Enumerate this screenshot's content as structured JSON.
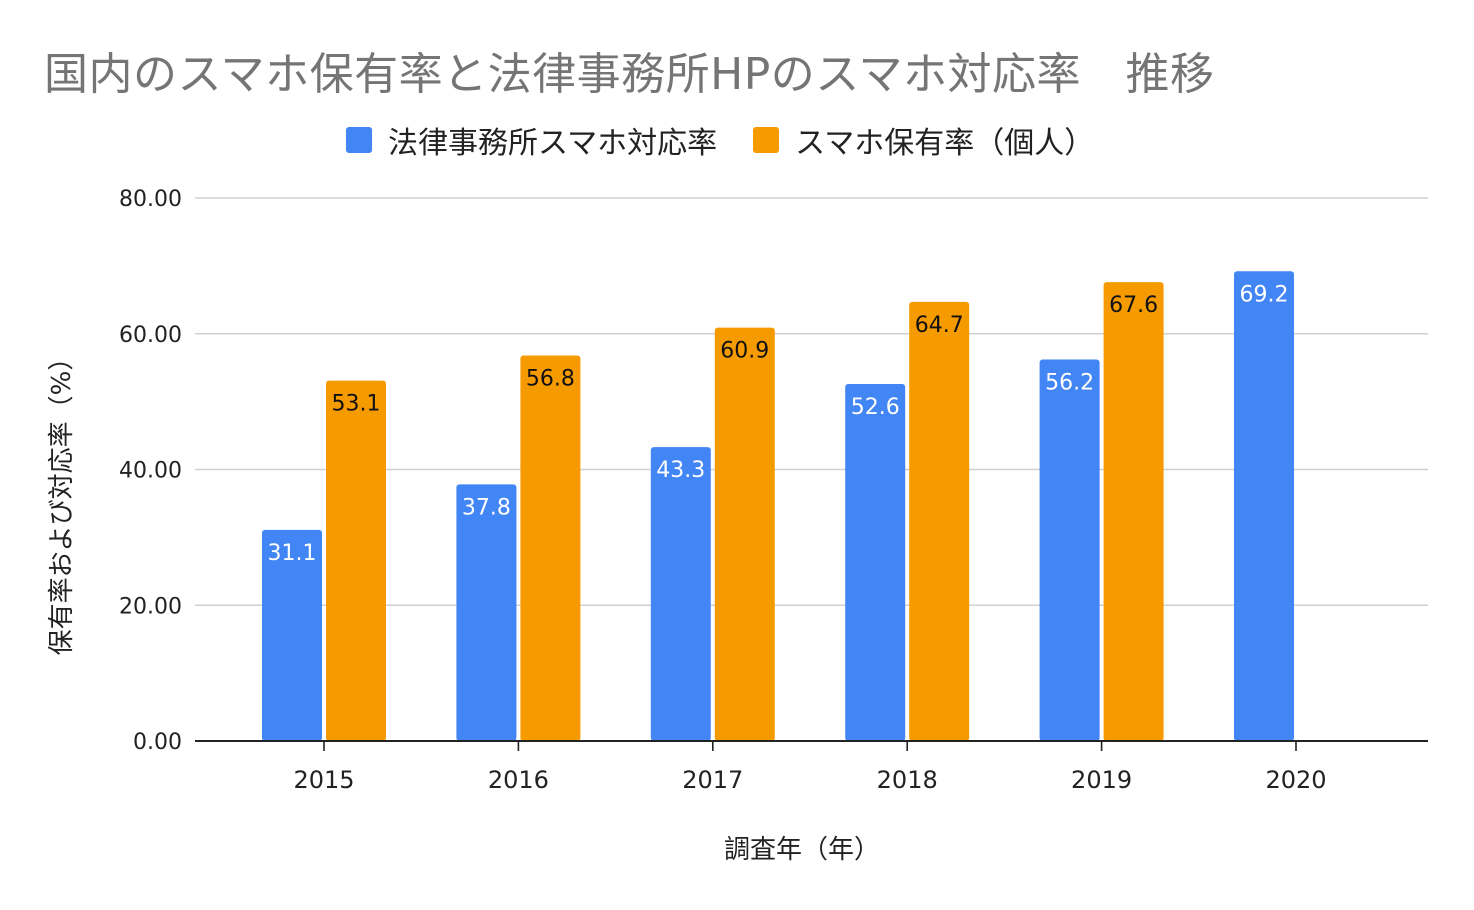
{
  "chart_data": {
    "type": "bar",
    "title": "国内のスマホ保有率と法律事務所HPのスマホ対応率　推移",
    "xlabel": "調査年（年）",
    "ylabel": "保有率および対応率（%）",
    "categories": [
      "2015",
      "2016",
      "2017",
      "2018",
      "2019",
      "2020"
    ],
    "series": [
      {
        "name": "法律事務所スマホ対応率",
        "color": "#4285F4",
        "label_color": "#ffffff",
        "values": [
          31.1,
          37.8,
          43.3,
          52.6,
          56.2,
          69.2
        ],
        "data_labels": [
          "31.1",
          "37.8",
          "43.3",
          "52.6",
          "56.2",
          "69.2"
        ]
      },
      {
        "name": "スマホ保有率（個人）",
        "color": "#F59B00",
        "label_color": "#111111",
        "values": [
          53.1,
          56.8,
          60.9,
          64.7,
          67.6,
          null
        ],
        "data_labels": [
          "53.1",
          "56.8",
          "60.9",
          "64.7",
          "67.6",
          ""
        ]
      }
    ],
    "ylim": [
      0,
      80
    ],
    "yticks": [
      "0.00",
      "20.00",
      "40.00",
      "60.00",
      "80.00"
    ],
    "grid": true,
    "legend_position": "top"
  }
}
